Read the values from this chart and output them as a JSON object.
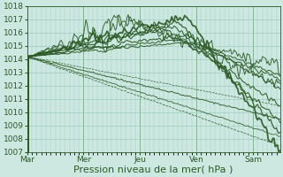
{
  "bg_color": "#cce8e0",
  "grid_color": "#a0ccbf",
  "line_color": "#2d5a27",
  "xlabel": "Pression niveau de la mer( hPa )",
  "ylim": [
    1007,
    1018
  ],
  "yticks": [
    1007,
    1008,
    1009,
    1010,
    1011,
    1012,
    1013,
    1014,
    1015,
    1016,
    1017,
    1018
  ],
  "day_labels": [
    "Mar",
    "Mer",
    "Jeu",
    "Ven",
    "Sam"
  ],
  "day_positions": [
    0,
    48,
    96,
    144,
    192
  ],
  "total_points": 216,
  "xlabel_fontsize": 8,
  "tick_fontsize": 6.5
}
